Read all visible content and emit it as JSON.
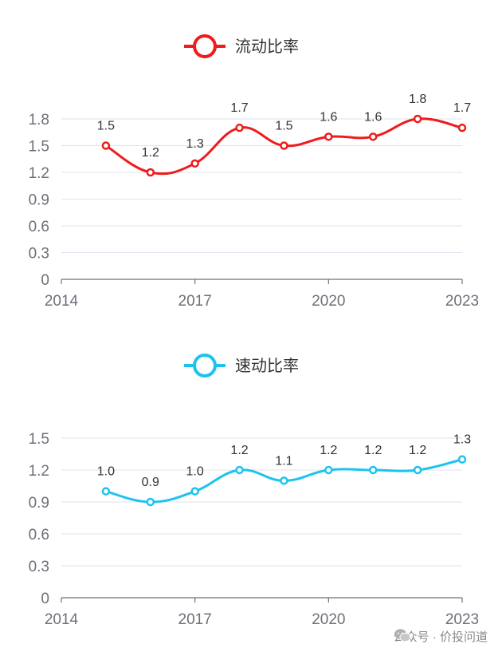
{
  "colors": {
    "current": "#ee1c1c",
    "quick": "#1cc3ef"
  },
  "chart_data": [
    {
      "type": "line",
      "title": "流动比率",
      "legend": "流动比率",
      "x": [
        2015,
        2016,
        2017,
        2018,
        2019,
        2020,
        2021,
        2022,
        2023
      ],
      "values": [
        1.5,
        1.2,
        1.3,
        1.7,
        1.5,
        1.6,
        1.6,
        1.8,
        1.7
      ],
      "labels": [
        "1.5",
        "1.2",
        "1.3",
        "1.7",
        "1.5",
        "1.6",
        "1.6",
        "1.8",
        "1.7"
      ],
      "xlim": [
        2014,
        2023
      ],
      "xticks": [
        "2014",
        "2017",
        "2020",
        "2023"
      ],
      "ylim": [
        0,
        1.8
      ],
      "yticks": [
        "0",
        "0.3",
        "0.6",
        "0.9",
        "1.2",
        "1.5",
        "1.8"
      ],
      "smooth": true
    },
    {
      "type": "line",
      "title": "速动比率",
      "legend": "速动比率",
      "x": [
        2015,
        2016,
        2017,
        2018,
        2019,
        2020,
        2021,
        2022,
        2023
      ],
      "values": [
        1.0,
        0.9,
        1.0,
        1.2,
        1.1,
        1.2,
        1.2,
        1.2,
        1.3
      ],
      "labels": [
        "1.0",
        "0.9",
        "1.0",
        "1.2",
        "1.1",
        "1.2",
        "1.2",
        "1.2",
        "1.3"
      ],
      "xlim": [
        2014,
        2023
      ],
      "xticks": [
        "2014",
        "2017",
        "2020",
        "2023"
      ],
      "ylim": [
        0,
        1.5
      ],
      "yticks": [
        "0",
        "0.3",
        "0.6",
        "0.9",
        "1.2",
        "1.5"
      ],
      "smooth": true
    }
  ],
  "watermark": {
    "text": "公众号 · 价投问道"
  }
}
